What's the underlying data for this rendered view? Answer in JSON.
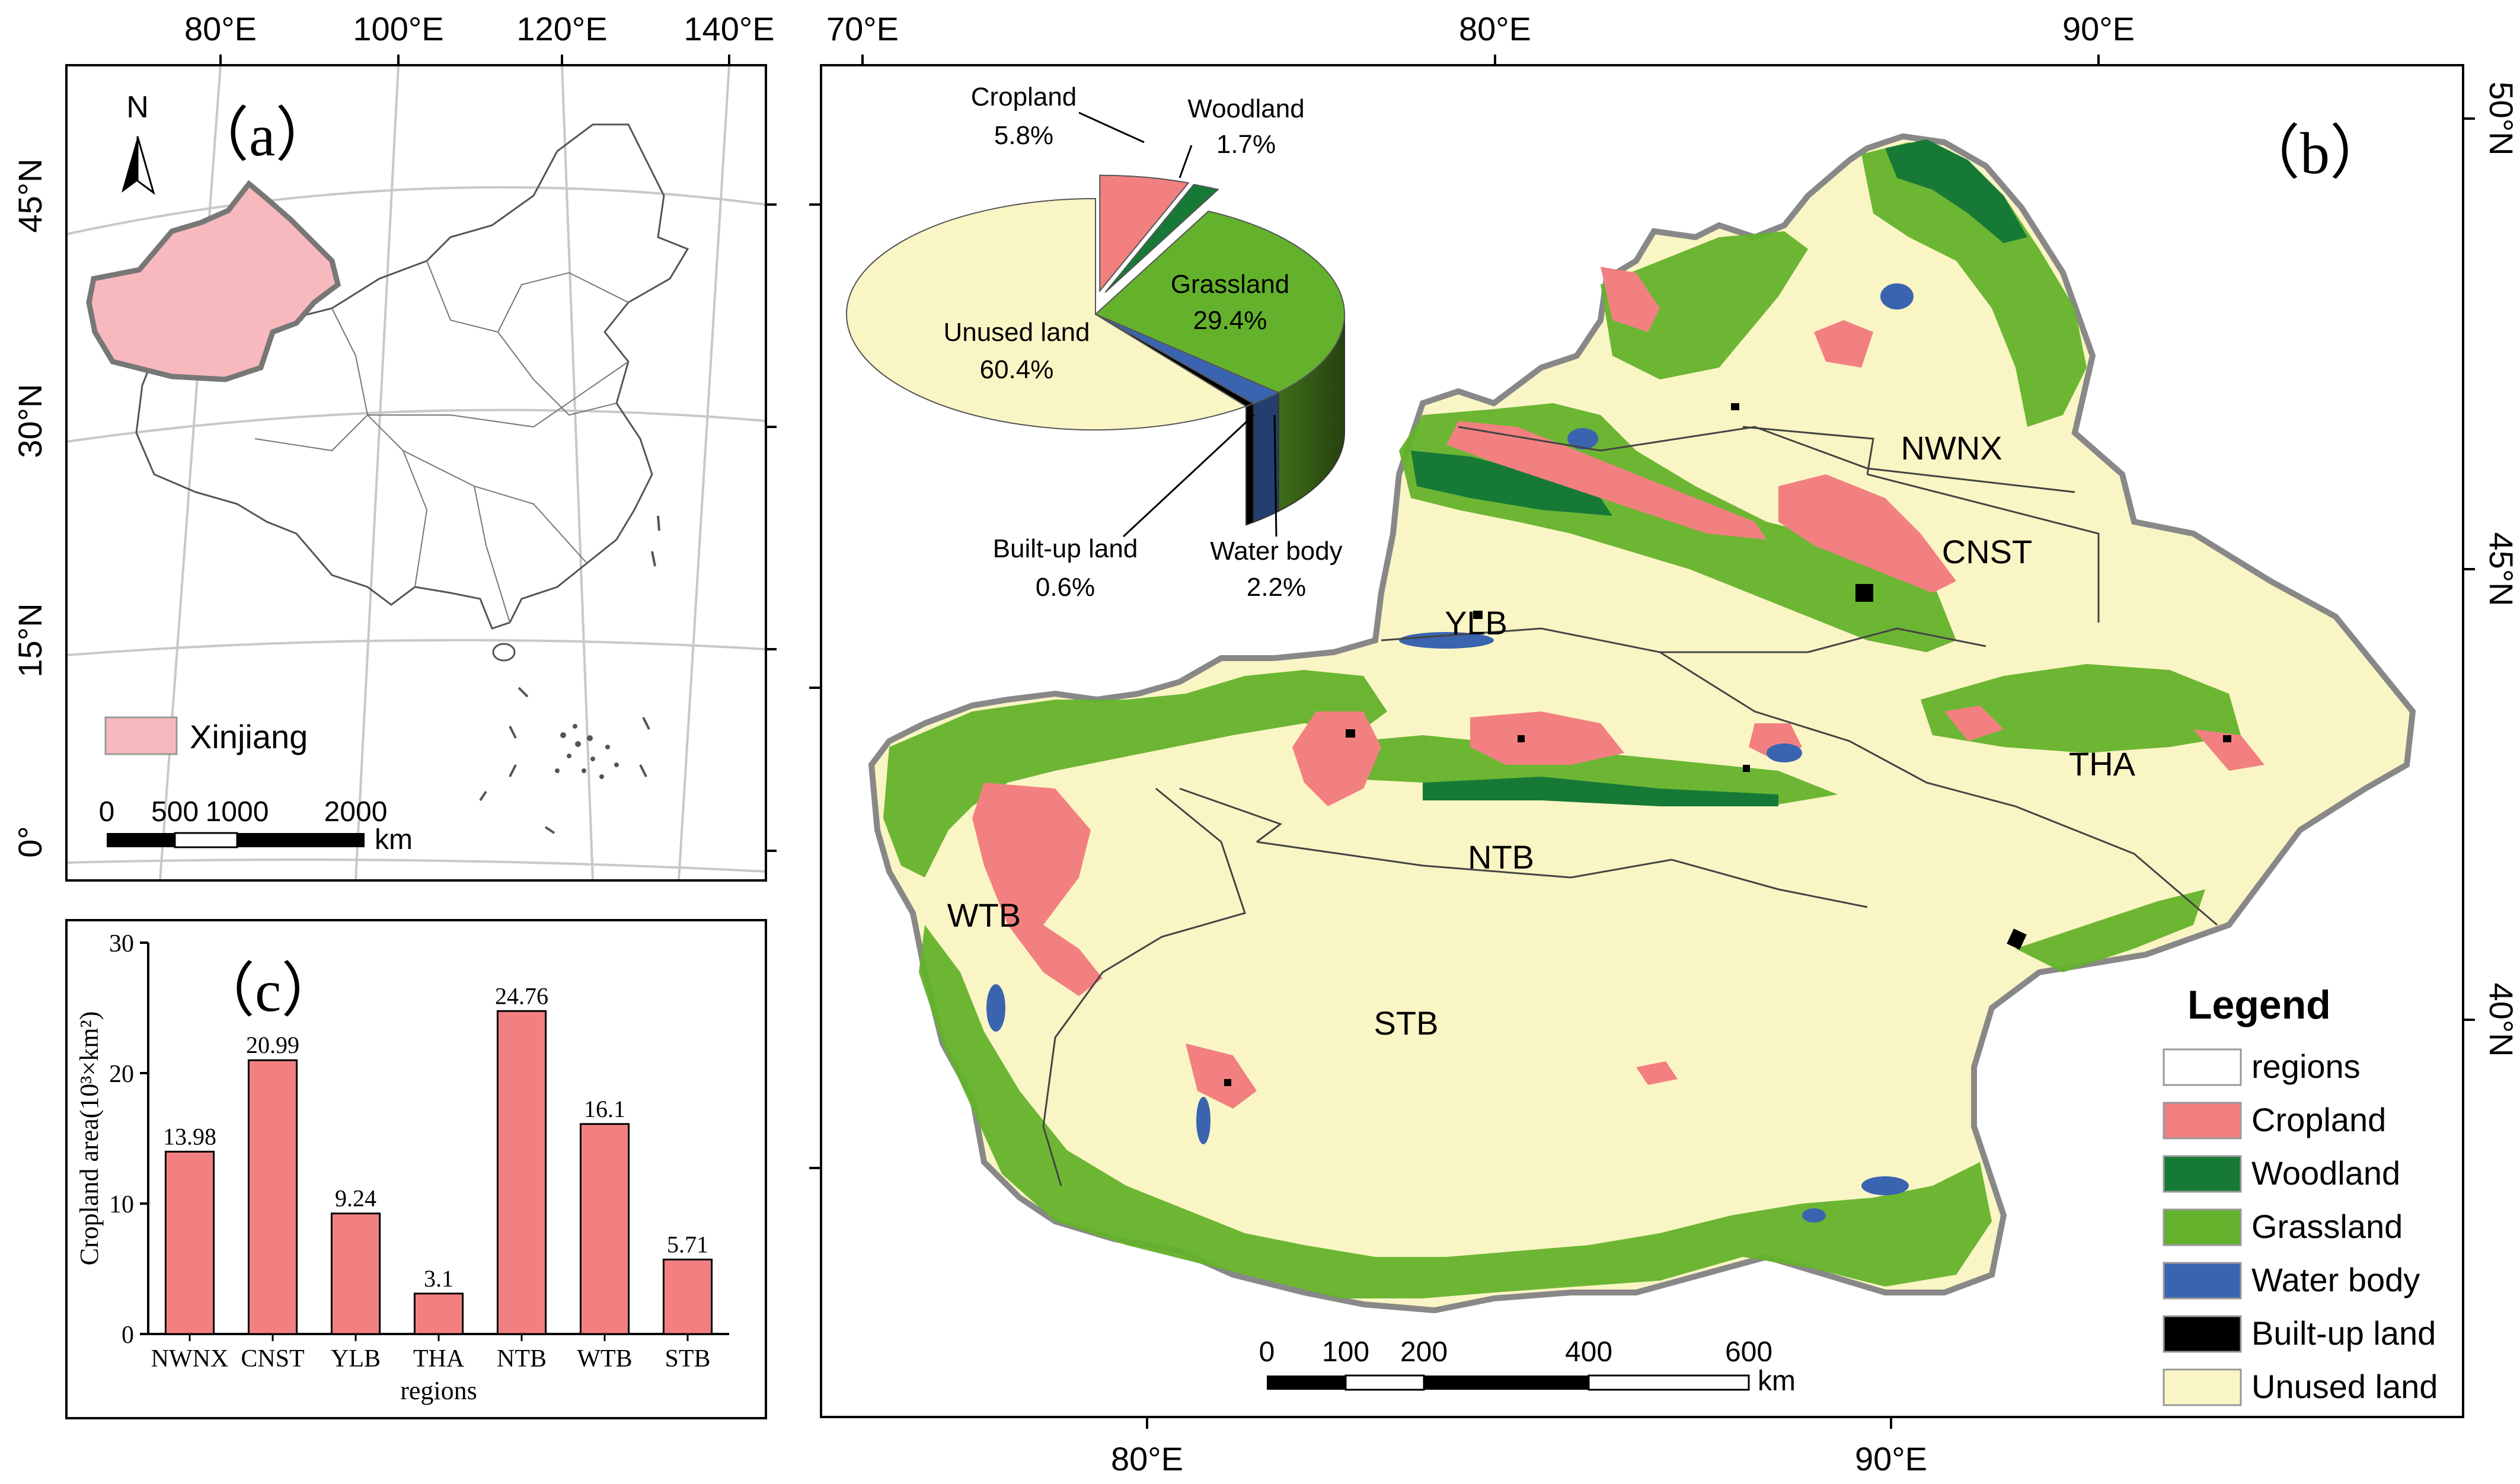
{
  "panel_a": {
    "label": "（a）",
    "north_label": "N",
    "top_coords": [
      "80°E",
      "100°E",
      "120°E",
      "140°E"
    ],
    "left_coords": [
      "45°N",
      "30°N",
      "15°N",
      "0°"
    ],
    "legend_label": "Xinjiang",
    "scale_labels": [
      "0",
      "500",
      "1000",
      "2000"
    ],
    "scale_unit": "km",
    "colors": {
      "xinjiang": "#f7b9bd",
      "outline": "#777777"
    }
  },
  "panel_b": {
    "label": "（b）",
    "top_coords": [
      "70°E",
      "80°E",
      "90°E"
    ],
    "bottom_coords": [
      "80°E",
      "90°E"
    ],
    "right_coords": [
      "50°N",
      "45°N",
      "40°N"
    ],
    "regions": [
      "NWNX",
      "CNST",
      "YLB",
      "THA",
      "NTB",
      "WTB",
      "STB"
    ],
    "scale_labels": [
      "0",
      "100",
      "200",
      "400",
      "600"
    ],
    "scale_unit": "km",
    "legend": {
      "title": "Legend",
      "items": [
        {
          "label": "regions",
          "color": "#ffffff"
        },
        {
          "label": "Cropland",
          "color": "#f28080"
        },
        {
          "label": "Woodland",
          "color": "#167a36"
        },
        {
          "label": "Grassland",
          "color": "#64b22c"
        },
        {
          "label": "Water body",
          "color": "#3a64b0"
        },
        {
          "label": "Built-up land",
          "color": "#000000"
        },
        {
          "label": "Unused land",
          "color": "#faf5c4"
        }
      ]
    },
    "pie": {
      "slices": [
        {
          "name": "Unused land",
          "pct": "60.4%",
          "value": 60.4,
          "color": "#faf5c4"
        },
        {
          "name": "Cropland",
          "pct": "5.8%",
          "value": 5.8,
          "color": "#f28080"
        },
        {
          "name": "Woodland",
          "pct": "1.7%",
          "value": 1.7,
          "color": "#167a36"
        },
        {
          "name": "Grassland",
          "pct": "29.4%",
          "value": 29.4,
          "color": "#64b22c"
        },
        {
          "name": "Water body",
          "pct": "2.2%",
          "value": 2.2,
          "color": "#3a64b0"
        },
        {
          "name": "Built-up land",
          "pct": "0.6%",
          "value": 0.6,
          "color": "#000000"
        }
      ]
    }
  },
  "chart_data": {
    "type": "bar",
    "panel_label": "（c）",
    "categories": [
      "NWNX",
      "CNST",
      "YLB",
      "THA",
      "NTB",
      "WTB",
      "STB"
    ],
    "values": [
      13.98,
      20.99,
      9.24,
      3.1,
      24.76,
      16.1,
      5.71
    ],
    "value_labels": [
      "13.98",
      "20.99",
      "9.24",
      "3.1",
      "24.76",
      "16.1",
      "5.71"
    ],
    "xlabel": "regions",
    "ylabel": "Cropland area(10³×km²)",
    "ylim": [
      0,
      30
    ],
    "yticks": [
      "0",
      "10",
      "20",
      "30"
    ],
    "bar_color": "#f28080",
    "grid": false
  }
}
